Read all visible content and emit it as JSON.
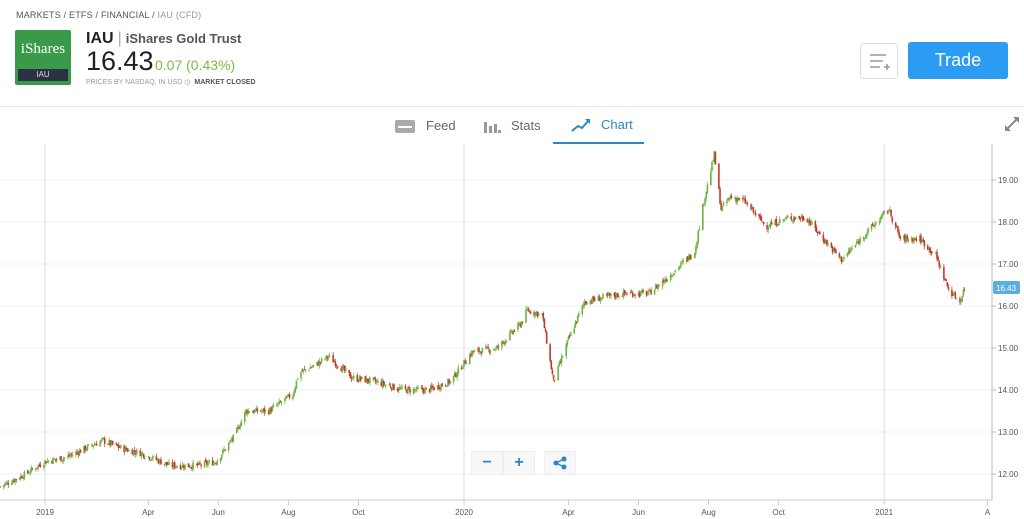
{
  "breadcrumb": [
    "MARKETS",
    "ETFS",
    "FINANCIAL",
    "IAU (CFD)"
  ],
  "instrument": {
    "logo_text": "iShares",
    "logo_ticker": "IAU",
    "symbol": "IAU",
    "name": "iShares Gold Trust",
    "price": "16.43",
    "change": "0.07 (0.43%)",
    "source": "PRICES BY NASDAQ, IN USD",
    "market_status": "MARKET CLOSED"
  },
  "actions": {
    "trade_label": "Trade",
    "watchlist_icon": "add-to-watchlist-icon"
  },
  "tabs": [
    {
      "label": "Feed",
      "icon": "feed-icon"
    },
    {
      "label": "Stats",
      "icon": "stats-icon"
    },
    {
      "label": "Chart",
      "icon": "chart-icon",
      "active": true
    }
  ],
  "colors": {
    "up": "#6cb33f",
    "down": "#c0392b",
    "accent": "#2b87c8",
    "trade": "#2b9cf2",
    "last_price_tag": "#5aaee0"
  },
  "chart_data": {
    "type": "candlestick",
    "x_ticks": [
      "2019",
      "Apr",
      "Jun",
      "Aug",
      "Oct",
      "2020",
      "Apr",
      "Jun",
      "Aug",
      "Oct",
      "2021",
      "A"
    ],
    "y_ticks": [
      "12.00",
      "13.00",
      "14.00",
      "15.00",
      "16.00",
      "17.00",
      "18.00",
      "19.00"
    ],
    "ylim": [
      11.5,
      19.9
    ],
    "last_price": "16.43",
    "close_path": [
      [
        "2018-11-23",
        11.7
      ],
      [
        "2018-12-15",
        12.0
      ],
      [
        "2019-01-01",
        12.3
      ],
      [
        "2019-01-20",
        12.4
      ],
      [
        "2019-02-20",
        12.8
      ],
      [
        "2019-03-10",
        12.6
      ],
      [
        "2019-03-25",
        12.5
      ],
      [
        "2019-04-20",
        12.2
      ],
      [
        "2019-05-15",
        12.2
      ],
      [
        "2019-05-30",
        12.3
      ],
      [
        "2019-06-15",
        12.9
      ],
      [
        "2019-06-25",
        13.5
      ],
      [
        "2019-07-15",
        13.5
      ],
      [
        "2019-08-05",
        13.9
      ],
      [
        "2019-08-10",
        14.4
      ],
      [
        "2019-08-25",
        14.6
      ],
      [
        "2019-09-05",
        14.8
      ],
      [
        "2019-09-25",
        14.3
      ],
      [
        "2019-10-15",
        14.2
      ],
      [
        "2019-11-10",
        14.0
      ],
      [
        "2019-12-01",
        14.0
      ],
      [
        "2019-12-20",
        14.2
      ],
      [
        "2020-01-08",
        14.9
      ],
      [
        "2020-01-30",
        15.0
      ],
      [
        "2020-02-20",
        15.6
      ],
      [
        "2020-02-25",
        15.9
      ],
      [
        "2020-03-09",
        15.8
      ],
      [
        "2020-03-19",
        14.2
      ],
      [
        "2020-04-01",
        15.2
      ],
      [
        "2020-04-15",
        16.1
      ],
      [
        "2020-05-01",
        16.2
      ],
      [
        "2020-05-20",
        16.3
      ],
      [
        "2020-06-10",
        16.3
      ],
      [
        "2020-07-01",
        16.8
      ],
      [
        "2020-07-20",
        17.3
      ],
      [
        "2020-07-28",
        18.5
      ],
      [
        "2020-08-06",
        19.6
      ],
      [
        "2020-08-12",
        18.3
      ],
      [
        "2020-08-20",
        18.6
      ],
      [
        "2020-09-01",
        18.5
      ],
      [
        "2020-09-20",
        17.9
      ],
      [
        "2020-10-10",
        18.1
      ],
      [
        "2020-10-25",
        18.1
      ],
      [
        "2020-11-09",
        17.6
      ],
      [
        "2020-11-25",
        17.1
      ],
      [
        "2020-12-15",
        17.7
      ],
      [
        "2021-01-05",
        18.3
      ],
      [
        "2021-01-15",
        17.6
      ],
      [
        "2021-02-01",
        17.6
      ],
      [
        "2021-02-15",
        17.2
      ],
      [
        "2021-02-26",
        16.4
      ],
      [
        "2021-03-08",
        16.1
      ],
      [
        "2021-03-12",
        16.43
      ]
    ]
  },
  "zoom_controls": {
    "zoom_out": "−",
    "zoom_in": "+",
    "share_icon": "share-icon"
  }
}
